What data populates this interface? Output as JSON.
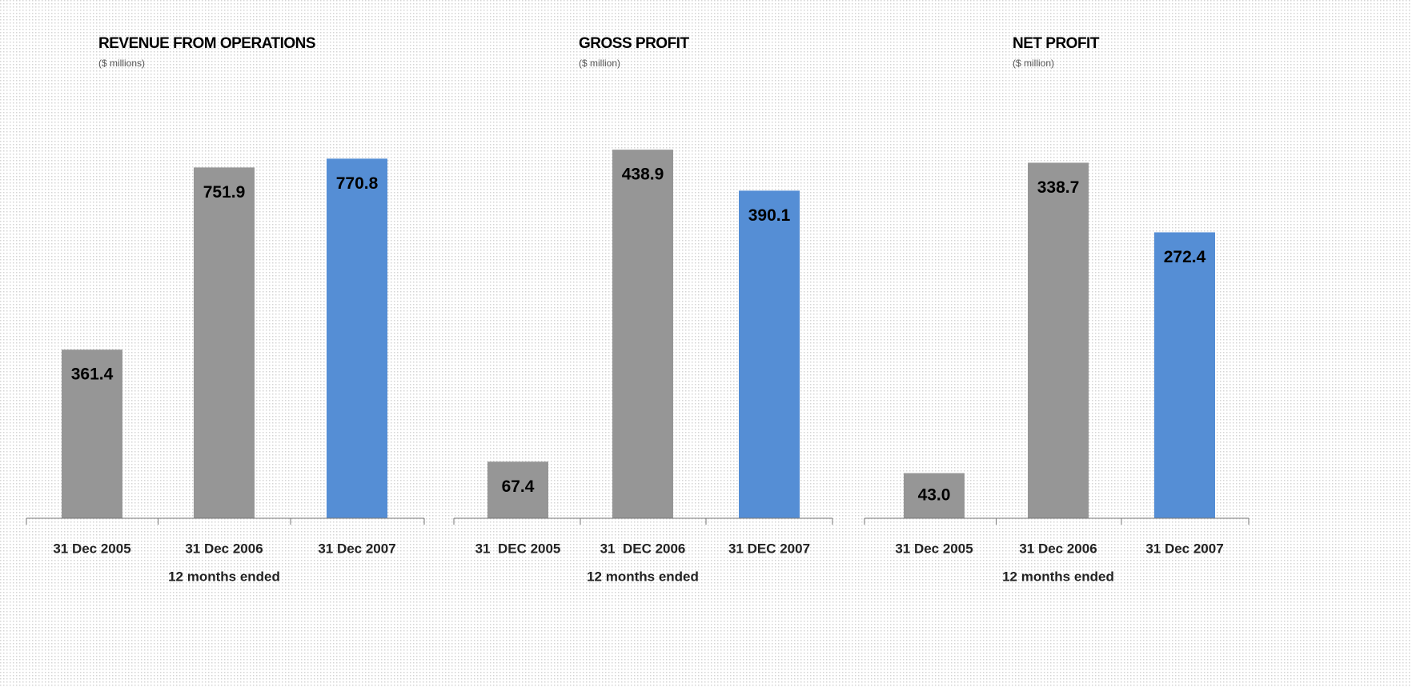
{
  "chart_data": [
    {
      "type": "bar",
      "title": "REVENUE FROM OPERATIONS",
      "subtitle": "($ millions)",
      "categories": [
        "31 Dec 2005",
        "31 Dec 2006",
        "31 Dec 2007"
      ],
      "values": [
        361.4,
        751.9,
        770.8
      ],
      "value_labels": [
        "361.4",
        "751.9",
        "770.8"
      ],
      "colors": [
        "#969696",
        "#969696",
        "#558ed5"
      ],
      "x_label": "12 months ended",
      "ylim": [
        0,
        900
      ]
    },
    {
      "type": "bar",
      "title": "GROSS PROFIT",
      "subtitle": "($ million)",
      "categories": [
        "31  DEC 2005",
        "31  DEC 2006",
        "31 DEC 2007"
      ],
      "values": [
        67.4,
        438.9,
        390.1
      ],
      "value_labels": [
        "67.4",
        "438.9",
        "390.1"
      ],
      "colors": [
        "#969696",
        "#969696",
        "#558ed5"
      ],
      "x_label": "12 months ended",
      "ylim": [
        0,
        500
      ]
    },
    {
      "type": "bar",
      "title": "NET PROFIT",
      "subtitle": "($ million)",
      "categories": [
        "31 Dec 2005",
        "31 Dec 2006",
        "31 Dec 2007"
      ],
      "values": [
        43.0,
        338.7,
        272.4
      ],
      "value_labels": [
        "43.0",
        "338.7",
        "272.4"
      ],
      "colors": [
        "#969696",
        "#969696",
        "#558ed5"
      ],
      "x_label": "12 months ended",
      "ylim": [
        0,
        400
      ]
    }
  ]
}
